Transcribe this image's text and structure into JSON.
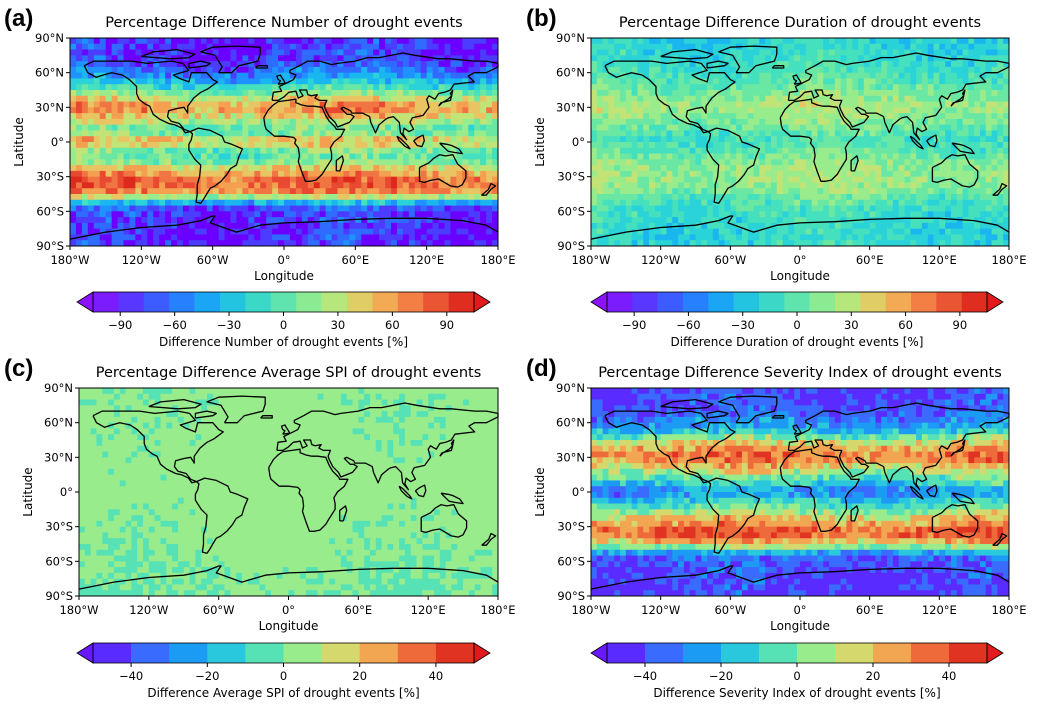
{
  "chart_data": [
    {
      "panel": "(a)",
      "type": "heatmap",
      "title": "Percentage Difference Number of drought events",
      "xlabel": "Longitude",
      "ylabel": "Latitude",
      "xticks": [
        "180°W",
        "120°W",
        "60°W",
        "0°",
        "60°E",
        "120°E",
        "180°E"
      ],
      "yticks": [
        "90°N",
        "60°N",
        "30°N",
        "0°",
        "30°S",
        "60°S",
        "90°S"
      ],
      "xlim": [
        -180,
        180
      ],
      "ylim": [
        -90,
        90
      ],
      "colorbar": {
        "label": "Difference Number of drought events [%]",
        "ticks": [
          "−90",
          "−60",
          "−30",
          "0",
          "30",
          "60",
          "90"
        ],
        "range": [
          -105,
          105
        ],
        "extend": "both"
      },
      "zonal_pattern": [
        {
          "lat": 90,
          "value": -95
        },
        {
          "lat": 70,
          "value": -90
        },
        {
          "lat": 55,
          "value": -55
        },
        {
          "lat": 40,
          "value": 20
        },
        {
          "lat": 30,
          "value": 70
        },
        {
          "lat": 20,
          "value": 35
        },
        {
          "lat": 10,
          "value": -10
        },
        {
          "lat": 0,
          "value": 60
        },
        {
          "lat": -5,
          "value": 10
        },
        {
          "lat": -15,
          "value": -5
        },
        {
          "lat": -25,
          "value": 55
        },
        {
          "lat": -35,
          "value": 85
        },
        {
          "lat": -45,
          "value": 60
        },
        {
          "lat": -55,
          "value": -80
        },
        {
          "lat": -70,
          "value": -95
        },
        {
          "lat": -90,
          "value": -95
        }
      ]
    },
    {
      "panel": "(b)",
      "type": "heatmap",
      "title": "Percentage Difference Duration of drought events",
      "xlabel": "Longitude",
      "ylabel": "Latitude",
      "xticks": [
        "180°W",
        "120°W",
        "60°W",
        "0°",
        "60°E",
        "120°E",
        "180°E"
      ],
      "yticks": [
        "90°N",
        "60°N",
        "30°N",
        "0°",
        "30°S",
        "60°S",
        "90°S"
      ],
      "xlim": [
        -180,
        180
      ],
      "ylim": [
        -90,
        90
      ],
      "colorbar": {
        "label": "Difference Duration of drought events [%]",
        "ticks": [
          "−90",
          "−60",
          "−30",
          "0",
          "30",
          "60",
          "90"
        ],
        "range": [
          -105,
          105
        ],
        "extend": "both"
      },
      "zonal_pattern": [
        {
          "lat": 90,
          "value": -30
        },
        {
          "lat": 60,
          "value": -15
        },
        {
          "lat": 40,
          "value": 10
        },
        {
          "lat": 30,
          "value": 25
        },
        {
          "lat": 15,
          "value": 5
        },
        {
          "lat": 0,
          "value": -15
        },
        {
          "lat": -20,
          "value": 15
        },
        {
          "lat": -35,
          "value": 20
        },
        {
          "lat": -55,
          "value": -15
        },
        {
          "lat": -75,
          "value": -25
        },
        {
          "lat": -90,
          "value": -25
        }
      ]
    },
    {
      "panel": "(c)",
      "type": "heatmap",
      "title": "Percentage Difference Average SPI of drought events",
      "xlabel": "Longitude",
      "ylabel": "Latitude",
      "xticks": [
        "180°W",
        "120°W",
        "60°W",
        "0°",
        "60°E",
        "120°E",
        "180°E"
      ],
      "yticks": [
        "90°N",
        "60°N",
        "30°N",
        "0°",
        "30°S",
        "60°S",
        "90°S"
      ],
      "xlim": [
        -180,
        180
      ],
      "ylim": [
        -90,
        90
      ],
      "colorbar": {
        "label": "Difference Average SPI of drought events [%]",
        "ticks": [
          "−40",
          "−20",
          "0",
          "20",
          "40"
        ],
        "range": [
          -50,
          50
        ],
        "extend": "both"
      },
      "zonal_pattern": [
        {
          "lat": 90,
          "value": 2
        },
        {
          "lat": 45,
          "value": 3
        },
        {
          "lat": 0,
          "value": 4
        },
        {
          "lat": -45,
          "value": 2
        },
        {
          "lat": -90,
          "value": 0
        }
      ]
    },
    {
      "panel": "(d)",
      "type": "heatmap",
      "title": "Percentage Difference Severity Index of drought events",
      "xlabel": "Longitude",
      "ylabel": "Latitude",
      "xticks": [
        "180°W",
        "120°W",
        "60°W",
        "0°",
        "60°E",
        "120°E",
        "180°E"
      ],
      "yticks": [
        "90°N",
        "60°N",
        "30°N",
        "0°",
        "30°S",
        "60°S",
        "90°S"
      ],
      "xlim": [
        -180,
        180
      ],
      "ylim": [
        -90,
        90
      ],
      "colorbar": {
        "label": "Difference Severity Index of drought events [%]",
        "ticks": [
          "−40",
          "−20",
          "0",
          "20",
          "40"
        ],
        "range": [
          -50,
          50
        ],
        "extend": "both"
      },
      "zonal_pattern": [
        {
          "lat": 90,
          "value": -48
        },
        {
          "lat": 70,
          "value": -42
        },
        {
          "lat": 55,
          "value": -25
        },
        {
          "lat": 40,
          "value": 25
        },
        {
          "lat": 30,
          "value": 40
        },
        {
          "lat": 18,
          "value": 10
        },
        {
          "lat": 5,
          "value": -20
        },
        {
          "lat": 0,
          "value": -35
        },
        {
          "lat": -10,
          "value": -10
        },
        {
          "lat": -25,
          "value": 25
        },
        {
          "lat": -35,
          "value": 45
        },
        {
          "lat": -45,
          "value": 20
        },
        {
          "lat": -55,
          "value": -40
        },
        {
          "lat": -75,
          "value": -48
        },
        {
          "lat": -90,
          "value": -48
        }
      ]
    }
  ]
}
